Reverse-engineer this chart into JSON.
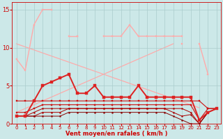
{
  "x": [
    0,
    1,
    2,
    3,
    4,
    5,
    6,
    7,
    8,
    9,
    10,
    11,
    12,
    13,
    14,
    15,
    16,
    17,
    18,
    19,
    20,
    21,
    22,
    23
  ],
  "series": [
    {
      "name": "rafales_pink_high",
      "color": "#ffaaaa",
      "linewidth": 1.0,
      "marker": "s",
      "markersize": 2.0,
      "zorder": 2,
      "values": [
        8.5,
        7.0,
        13.0,
        15.0,
        15.0,
        null,
        11.5,
        11.5,
        null,
        null,
        11.5,
        11.5,
        11.5,
        13.0,
        11.5,
        11.5,
        11.5,
        11.5,
        11.5,
        11.5,
        null,
        null,
        null,
        null
      ]
    },
    {
      "name": "diag_down",
      "color": "#ffaaaa",
      "linewidth": 0.9,
      "marker": null,
      "markersize": 0,
      "zorder": 1,
      "values": [
        10.5,
        10.1,
        9.7,
        9.3,
        8.9,
        8.5,
        8.1,
        7.7,
        7.3,
        6.9,
        6.5,
        6.1,
        5.7,
        5.3,
        4.9,
        4.5,
        4.1,
        3.7,
        3.3,
        2.9,
        2.5,
        2.1,
        null,
        null
      ]
    },
    {
      "name": "diag_up",
      "color": "#ffaaaa",
      "linewidth": 0.9,
      "marker": null,
      "markersize": 0,
      "zorder": 1,
      "values": [
        1.5,
        2.0,
        2.5,
        3.0,
        3.5,
        4.0,
        4.5,
        5.0,
        5.5,
        6.0,
        6.5,
        7.0,
        7.5,
        8.0,
        8.5,
        9.0,
        9.5,
        10.0,
        10.5,
        null,
        null,
        null,
        null,
        null
      ]
    },
    {
      "name": "rafales_pink_secondary",
      "color": "#ffaaaa",
      "linewidth": 1.0,
      "marker": "s",
      "markersize": 2.0,
      "zorder": 2,
      "values": [
        null,
        null,
        null,
        null,
        null,
        null,
        null,
        null,
        null,
        null,
        null,
        null,
        null,
        null,
        null,
        null,
        null,
        null,
        null,
        null,
        null,
        10.5,
        6.5,
        null
      ]
    },
    {
      "name": "rafales_pink_end",
      "color": "#ffaaaa",
      "linewidth": 1.0,
      "marker": "s",
      "markersize": 2.0,
      "zorder": 2,
      "values": [
        null,
        null,
        null,
        null,
        null,
        null,
        null,
        null,
        null,
        null,
        null,
        null,
        null,
        null,
        null,
        null,
        null,
        null,
        null,
        10.5,
        null,
        null,
        null,
        null
      ]
    },
    {
      "name": "moyen_main",
      "color": "#dd2222",
      "linewidth": 1.4,
      "marker": "s",
      "markersize": 2.2,
      "zorder": 4,
      "values": [
        1.0,
        1.0,
        3.0,
        5.0,
        5.5,
        6.0,
        6.5,
        4.0,
        4.0,
        5.0,
        3.5,
        3.5,
        3.5,
        3.5,
        5.0,
        3.5,
        3.5,
        3.5,
        3.5,
        3.5,
        3.5,
        0.5,
        1.5,
        2.0
      ]
    },
    {
      "name": "line_flat3",
      "color": "#cc1111",
      "linewidth": 0.8,
      "marker": "s",
      "markersize": 1.5,
      "zorder": 3,
      "values": [
        3.0,
        3.0,
        3.0,
        3.0,
        3.0,
        3.0,
        3.0,
        3.0,
        3.0,
        3.0,
        3.0,
        3.0,
        3.0,
        3.0,
        3.0,
        3.0,
        3.0,
        3.0,
        3.0,
        3.0,
        3.0,
        3.0,
        2.0,
        2.0
      ]
    },
    {
      "name": "line_flat2",
      "color": "#cc1111",
      "linewidth": 0.8,
      "marker": "s",
      "markersize": 1.5,
      "zorder": 3,
      "values": [
        1.5,
        1.5,
        2.0,
        2.5,
        2.5,
        2.5,
        2.5,
        2.5,
        2.5,
        2.5,
        2.5,
        2.5,
        2.5,
        2.5,
        2.5,
        2.5,
        2.5,
        2.5,
        2.5,
        2.5,
        2.5,
        0.5,
        2.0,
        2.0
      ]
    },
    {
      "name": "line_flat1a",
      "color": "#aa0000",
      "linewidth": 0.7,
      "marker": "s",
      "markersize": 1.2,
      "zorder": 3,
      "values": [
        1.0,
        1.0,
        1.5,
        2.0,
        2.0,
        2.0,
        2.0,
        2.0,
        2.0,
        2.0,
        2.0,
        2.0,
        2.0,
        2.0,
        2.0,
        2.0,
        2.0,
        2.0,
        2.0,
        2.0,
        1.5,
        0.0,
        1.5,
        2.0
      ]
    },
    {
      "name": "line_flat1b",
      "color": "#aa0000",
      "linewidth": 0.7,
      "marker": "s",
      "markersize": 1.2,
      "zorder": 3,
      "values": [
        1.0,
        1.0,
        1.0,
        1.5,
        1.5,
        1.5,
        2.0,
        2.0,
        2.0,
        2.0,
        2.0,
        2.0,
        2.0,
        2.0,
        2.0,
        2.0,
        2.0,
        2.0,
        1.5,
        1.0,
        1.2,
        0.0,
        1.5,
        2.0
      ]
    },
    {
      "name": "line_flat0",
      "color": "#880000",
      "linewidth": 0.7,
      "marker": "s",
      "markersize": 1.2,
      "zorder": 3,
      "values": [
        1.0,
        1.0,
        1.0,
        1.0,
        1.0,
        1.0,
        1.5,
        1.5,
        1.5,
        1.5,
        1.5,
        1.5,
        1.5,
        1.5,
        1.5,
        1.5,
        1.5,
        1.5,
        1.0,
        0.5,
        0.0,
        0.0,
        1.5,
        2.0
      ]
    }
  ],
  "xlabel": "Vent moyen/en rafales ( km/h )",
  "xlim": [
    -0.5,
    23.5
  ],
  "ylim": [
    0,
    16
  ],
  "yticks": [
    0,
    5,
    10,
    15
  ],
  "xticks": [
    0,
    1,
    2,
    3,
    4,
    5,
    6,
    7,
    8,
    9,
    10,
    11,
    12,
    13,
    14,
    15,
    16,
    17,
    18,
    19,
    20,
    21,
    22,
    23
  ],
  "bg_color": "#cce8e8",
  "grid_color": "#aacccc",
  "tick_color": "#cc0000",
  "label_color": "#cc0000"
}
